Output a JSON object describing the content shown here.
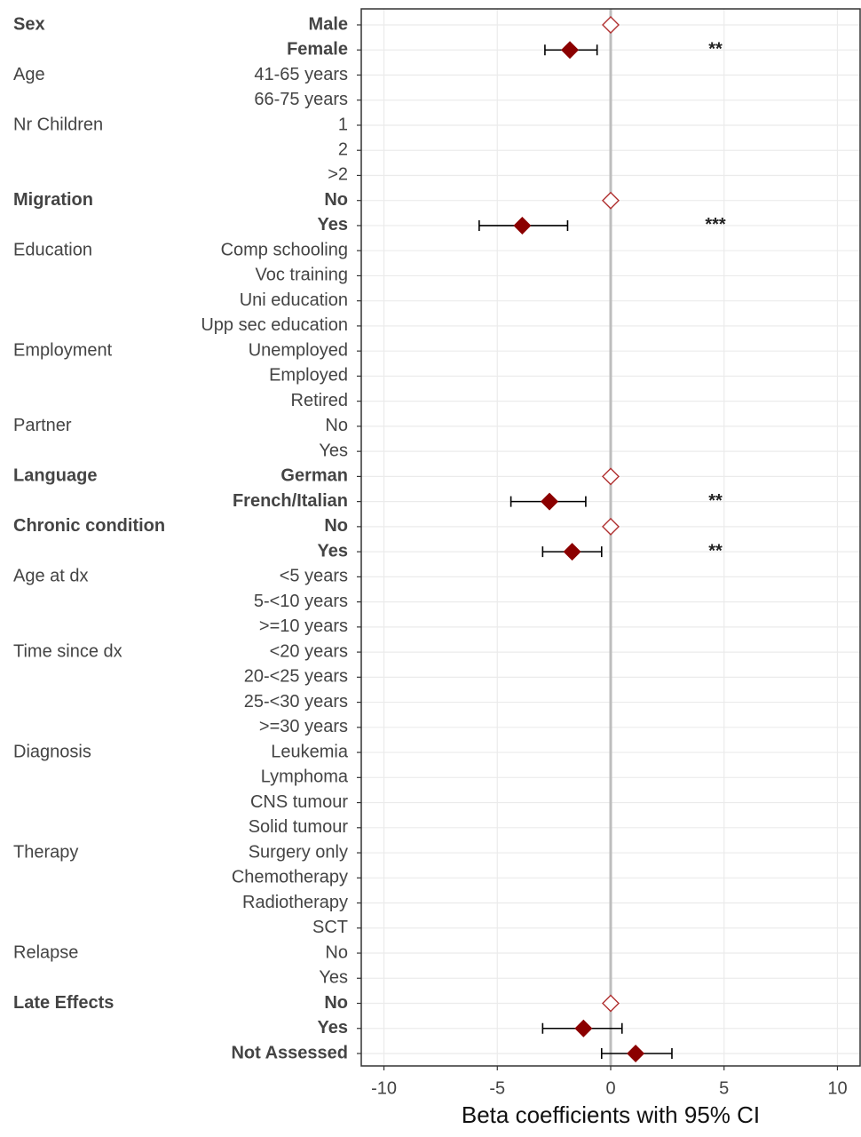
{
  "chart_data": {
    "type": "forest",
    "x_label": "Beta coefficients with 95% CI",
    "xlim": [
      -11,
      11
    ],
    "xticks": [
      -10,
      -5,
      0,
      5,
      10
    ],
    "grid": true,
    "reference_line": 0,
    "marker_color": "#8b0000",
    "reference_marker_color": "#b03030",
    "errorbar_color": "#000000",
    "groups": [
      {
        "name": "Sex",
        "bold": true,
        "categories": [
          "Male",
          "Female"
        ],
        "values": [
          0,
          -1.8
        ],
        "ci_low": [
          null,
          -2.9
        ],
        "ci_high": [
          null,
          -0.6
        ],
        "significance": [
          null,
          "**"
        ]
      },
      {
        "name": "Age",
        "bold": false,
        "categories": [
          "41-65 years",
          "66-75 years"
        ],
        "values": [
          null,
          null
        ],
        "ci_low": [
          null,
          null
        ],
        "ci_high": [
          null,
          null
        ],
        "significance": [
          null,
          null
        ]
      },
      {
        "name": "Nr Children",
        "bold": false,
        "categories": [
          "1",
          "2",
          ">2"
        ],
        "values": [
          null,
          null,
          null
        ],
        "ci_low": [
          null,
          null,
          null
        ],
        "ci_high": [
          null,
          null,
          null
        ],
        "significance": [
          null,
          null,
          null
        ]
      },
      {
        "name": "Migration",
        "bold": true,
        "categories": [
          "No",
          "Yes"
        ],
        "values": [
          0,
          -3.9
        ],
        "ci_low": [
          null,
          -5.8
        ],
        "ci_high": [
          null,
          -1.9
        ],
        "significance": [
          null,
          "***"
        ]
      },
      {
        "name": "Education",
        "bold": false,
        "categories": [
          "Comp schooling",
          "Voc training",
          "Uni education",
          "Upp sec education"
        ],
        "values": [
          null,
          null,
          null,
          null
        ],
        "ci_low": [
          null,
          null,
          null,
          null
        ],
        "ci_high": [
          null,
          null,
          null,
          null
        ],
        "significance": [
          null,
          null,
          null,
          null
        ]
      },
      {
        "name": "Employment",
        "bold": false,
        "categories": [
          "Unemployed",
          "Employed",
          "Retired"
        ],
        "values": [
          null,
          null,
          null
        ],
        "ci_low": [
          null,
          null,
          null
        ],
        "ci_high": [
          null,
          null,
          null
        ],
        "significance": [
          null,
          null,
          null
        ]
      },
      {
        "name": "Partner",
        "bold": false,
        "categories": [
          "No",
          "Yes"
        ],
        "values": [
          null,
          null
        ],
        "ci_low": [
          null,
          null
        ],
        "ci_high": [
          null,
          null
        ],
        "significance": [
          null,
          null
        ]
      },
      {
        "name": "Language",
        "bold": true,
        "categories": [
          "German",
          "French/Italian"
        ],
        "values": [
          0,
          -2.7
        ],
        "ci_low": [
          null,
          -4.4
        ],
        "ci_high": [
          null,
          -1.1
        ],
        "significance": [
          null,
          "**"
        ]
      },
      {
        "name": "Chronic condition",
        "bold": true,
        "categories": [
          "No",
          "Yes"
        ],
        "values": [
          0,
          -1.7
        ],
        "ci_low": [
          null,
          -3.0
        ],
        "ci_high": [
          null,
          -0.4
        ],
        "significance": [
          null,
          "**"
        ]
      },
      {
        "name": "Age at dx",
        "bold": false,
        "categories": [
          "<5 years",
          "5-<10 years",
          ">=10 years"
        ],
        "values": [
          null,
          null,
          null
        ],
        "ci_low": [
          null,
          null,
          null
        ],
        "ci_high": [
          null,
          null,
          null
        ],
        "significance": [
          null,
          null,
          null
        ]
      },
      {
        "name": "Time since dx",
        "bold": false,
        "categories": [
          "<20 years",
          "20-<25 years",
          "25-<30 years",
          ">=30 years"
        ],
        "values": [
          null,
          null,
          null,
          null
        ],
        "ci_low": [
          null,
          null,
          null,
          null
        ],
        "ci_high": [
          null,
          null,
          null,
          null
        ],
        "significance": [
          null,
          null,
          null,
          null
        ]
      },
      {
        "name": "Diagnosis",
        "bold": false,
        "categories": [
          "Leukemia",
          "Lymphoma",
          "CNS tumour",
          "Solid tumour"
        ],
        "values": [
          null,
          null,
          null,
          null
        ],
        "ci_low": [
          null,
          null,
          null,
          null
        ],
        "ci_high": [
          null,
          null,
          null,
          null
        ],
        "significance": [
          null,
          null,
          null,
          null
        ]
      },
      {
        "name": "Therapy",
        "bold": false,
        "categories": [
          "Surgery only",
          "Chemotherapy",
          "Radiotherapy",
          "SCT"
        ],
        "values": [
          null,
          null,
          null,
          null
        ],
        "ci_low": [
          null,
          null,
          null,
          null
        ],
        "ci_high": [
          null,
          null,
          null,
          null
        ],
        "significance": [
          null,
          null,
          null,
          null
        ]
      },
      {
        "name": "Relapse",
        "bold": false,
        "categories": [
          "No",
          "Yes"
        ],
        "values": [
          null,
          null
        ],
        "ci_low": [
          null,
          null
        ],
        "ci_high": [
          null,
          null
        ],
        "significance": [
          null,
          null
        ]
      },
      {
        "name": "Late Effects",
        "bold": true,
        "categories": [
          "No",
          "Yes",
          "Not Assessed"
        ],
        "values": [
          0,
          -1.2,
          1.1
        ],
        "ci_low": [
          null,
          -3.0,
          -0.4
        ],
        "ci_high": [
          null,
          0.5,
          2.7
        ],
        "significance": [
          null,
          null,
          null
        ]
      }
    ]
  }
}
